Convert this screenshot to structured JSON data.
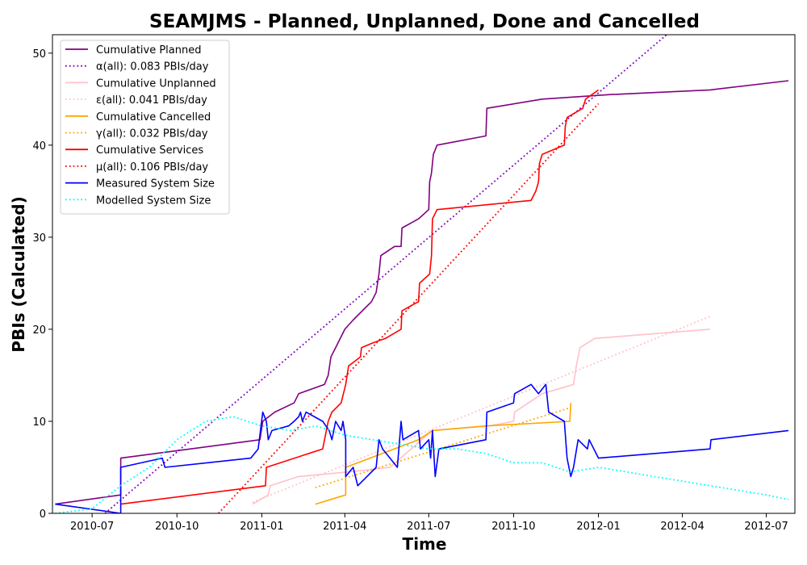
{
  "chart_data": {
    "type": "line",
    "title": "SEAMJMS - Planned, Unplanned, Done  and Cancelled",
    "xlabel": "Time",
    "ylabel": "PBIs (Calculated)",
    "xlim": [
      "2010-05-19",
      "2012-08-01"
    ],
    "ylim": [
      0,
      52
    ],
    "x_ticks": [
      "2010-07",
      "2010-10",
      "2011-01",
      "2011-04",
      "2011-07",
      "2011-10",
      "2012-01",
      "2012-04",
      "2012-07"
    ],
    "y_ticks": [
      0,
      10,
      20,
      30,
      40,
      50
    ],
    "grid": false,
    "legend_position": "top-left",
    "series": [
      {
        "name": "Cumulative Planned",
        "color": "#800080",
        "style": "solid",
        "points": [
          [
            "2010-05-22",
            1
          ],
          [
            "2010-08-01",
            2
          ],
          [
            "2010-08-01",
            6
          ],
          [
            "2010-12-30",
            8
          ],
          [
            "2011-01-02",
            10
          ],
          [
            "2011-01-15",
            11
          ],
          [
            "2011-02-05",
            12
          ],
          [
            "2011-02-10",
            13
          ],
          [
            "2011-03-10",
            14
          ],
          [
            "2011-03-14",
            15
          ],
          [
            "2011-03-17",
            17
          ],
          [
            "2011-03-22",
            18
          ],
          [
            "2011-04-01",
            20
          ],
          [
            "2011-04-10",
            21
          ],
          [
            "2011-04-20",
            22
          ],
          [
            "2011-04-30",
            23
          ],
          [
            "2011-05-05",
            24
          ],
          [
            "2011-05-08",
            26
          ],
          [
            "2011-05-10",
            28
          ],
          [
            "2011-05-25",
            29
          ],
          [
            "2011-06-01",
            29
          ],
          [
            "2011-06-02",
            31
          ],
          [
            "2011-06-20",
            32
          ],
          [
            "2011-07-01",
            33
          ],
          [
            "2011-07-02",
            36
          ],
          [
            "2011-07-04",
            37
          ],
          [
            "2011-07-06",
            39
          ],
          [
            "2011-07-10",
            40
          ],
          [
            "2011-09-01",
            41
          ],
          [
            "2011-09-02",
            44
          ],
          [
            "2011-11-01",
            45
          ],
          [
            "2012-01-15",
            45.5
          ],
          [
            "2012-05-01",
            46
          ],
          [
            "2012-07-25",
            47
          ]
        ]
      },
      {
        "name": "α(all): 0.083 PBIs/day",
        "color": "#8000bf",
        "style": "dotted",
        "points": [
          [
            "2010-07-15",
            0
          ],
          [
            "2012-03-15",
            52
          ]
        ]
      },
      {
        "name": "Cumulative Unplanned",
        "color": "#ffc0cb",
        "style": "solid",
        "points": [
          [
            "2010-12-22",
            1
          ],
          [
            "2011-01-08",
            2
          ],
          [
            "2011-01-10",
            3
          ],
          [
            "2011-02-10",
            4
          ],
          [
            "2011-04-05",
            4.5
          ],
          [
            "2011-05-20",
            5
          ],
          [
            "2011-07-05",
            9
          ],
          [
            "2011-09-05",
            9.5
          ],
          [
            "2011-10-01",
            10
          ],
          [
            "2011-10-02",
            11
          ],
          [
            "2011-11-01",
            13
          ],
          [
            "2011-12-05",
            14
          ],
          [
            "2011-12-08",
            16
          ],
          [
            "2011-12-12",
            18
          ],
          [
            "2011-12-28",
            19
          ],
          [
            "2012-05-01",
            20
          ]
        ]
      },
      {
        "name": "ε(all): 0.041 PBIs/day",
        "color": "#ffc0cb",
        "style": "dotted",
        "points": [
          [
            "2010-12-22",
            1.2
          ],
          [
            "2012-05-01",
            21.4
          ]
        ]
      },
      {
        "name": "Cumulative Cancelled",
        "color": "#ffa500",
        "style": "solid",
        "points": [
          [
            "2011-02-28",
            1
          ],
          [
            "2011-04-02",
            2
          ],
          [
            "2011-04-02",
            5
          ],
          [
            "2011-06-20",
            8
          ],
          [
            "2011-07-05",
            9
          ],
          [
            "2011-09-01",
            9.5
          ],
          [
            "2011-12-01",
            10
          ],
          [
            "2011-12-02",
            12
          ]
        ]
      },
      {
        "name": "γ(all): 0.032 PBIs/day",
        "color": "#ffa500",
        "style": "dotted",
        "points": [
          [
            "2011-02-28",
            2.8
          ],
          [
            "2011-12-02",
            11.5
          ]
        ]
      },
      {
        "name": "Cumulative Services",
        "color": "#ff0000",
        "style": "solid",
        "points": [
          [
            "2010-08-01",
            1
          ],
          [
            "2011-01-05",
            3
          ],
          [
            "2011-01-06",
            5
          ],
          [
            "2011-03-08",
            7
          ],
          [
            "2011-03-14",
            10
          ],
          [
            "2011-03-18",
            11
          ],
          [
            "2011-03-28",
            12
          ],
          [
            "2011-04-02",
            14
          ],
          [
            "2011-04-05",
            16
          ],
          [
            "2011-04-18",
            17
          ],
          [
            "2011-04-19",
            18
          ],
          [
            "2011-05-01",
            18.5
          ],
          [
            "2011-05-15",
            19
          ],
          [
            "2011-06-01",
            20
          ],
          [
            "2011-06-02",
            22
          ],
          [
            "2011-06-20",
            23
          ],
          [
            "2011-06-21",
            25
          ],
          [
            "2011-07-02",
            26
          ],
          [
            "2011-07-04",
            28
          ],
          [
            "2011-07-05",
            32
          ],
          [
            "2011-07-10",
            33
          ],
          [
            "2011-10-20",
            34
          ],
          [
            "2011-10-25",
            35
          ],
          [
            "2011-10-28",
            36
          ],
          [
            "2011-10-29",
            38
          ],
          [
            "2011-11-01",
            39
          ],
          [
            "2011-11-25",
            40
          ],
          [
            "2011-11-26",
            42
          ],
          [
            "2011-11-28",
            43
          ],
          [
            "2011-12-15",
            44
          ],
          [
            "2011-12-18",
            45
          ],
          [
            "2012-01-01",
            46
          ]
        ]
      },
      {
        "name": "μ(all): 0.106 PBIs/day",
        "color": "#ff0000",
        "style": "dotted",
        "points": [
          [
            "2010-11-15",
            0
          ],
          [
            "2012-01-01",
            44.5
          ]
        ]
      },
      {
        "name": "Measured System Size",
        "color": "#0000ff",
        "style": "solid",
        "points": [
          [
            "2010-05-22",
            1
          ],
          [
            "2010-08-01",
            0
          ],
          [
            "2010-08-01",
            5
          ],
          [
            "2010-09-15",
            6
          ],
          [
            "2010-09-18",
            5
          ],
          [
            "2010-12-20",
            6
          ],
          [
            "2010-12-28",
            7
          ],
          [
            "2011-01-02",
            11
          ],
          [
            "2011-01-06",
            10
          ],
          [
            "2011-01-08",
            8
          ],
          [
            "2011-01-12",
            9
          ],
          [
            "2011-01-30",
            9.5
          ],
          [
            "2011-02-05",
            10
          ],
          [
            "2011-02-10",
            10.5
          ],
          [
            "2011-02-12",
            11
          ],
          [
            "2011-02-14",
            10
          ],
          [
            "2011-02-18",
            11
          ],
          [
            "2011-03-08",
            10
          ],
          [
            "2011-03-15",
            9
          ],
          [
            "2011-03-18",
            8
          ],
          [
            "2011-03-22",
            10
          ],
          [
            "2011-03-28",
            9
          ],
          [
            "2011-03-30",
            10
          ],
          [
            "2011-04-02",
            8
          ],
          [
            "2011-04-02",
            4
          ],
          [
            "2011-04-10",
            5
          ],
          [
            "2011-04-15",
            3
          ],
          [
            "2011-04-25",
            4
          ],
          [
            "2011-05-05",
            5
          ],
          [
            "2011-05-08",
            8
          ],
          [
            "2011-05-12",
            7
          ],
          [
            "2011-05-28",
            5
          ],
          [
            "2011-06-01",
            10
          ],
          [
            "2011-06-03",
            8
          ],
          [
            "2011-06-20",
            9
          ],
          [
            "2011-06-22",
            7
          ],
          [
            "2011-07-01",
            8
          ],
          [
            "2011-07-03",
            6
          ],
          [
            "2011-07-05",
            9
          ],
          [
            "2011-07-08",
            4
          ],
          [
            "2011-07-12",
            7
          ],
          [
            "2011-09-01",
            8
          ],
          [
            "2011-09-02",
            11
          ],
          [
            "2011-10-01",
            12
          ],
          [
            "2011-10-02",
            13
          ],
          [
            "2011-10-20",
            14
          ],
          [
            "2011-10-28",
            13
          ],
          [
            "2011-11-05",
            14
          ],
          [
            "2011-11-08",
            11
          ],
          [
            "2011-11-25",
            10
          ],
          [
            "2011-11-28",
            6
          ],
          [
            "2011-12-02",
            4
          ],
          [
            "2011-12-05",
            5
          ],
          [
            "2011-12-10",
            8
          ],
          [
            "2011-12-20",
            7
          ],
          [
            "2011-12-22",
            8
          ],
          [
            "2012-01-01",
            6
          ],
          [
            "2012-05-01",
            7
          ],
          [
            "2012-05-02",
            8
          ],
          [
            "2012-07-25",
            9
          ]
        ]
      },
      {
        "name": "Modelled System Size",
        "color": "#00ffff",
        "style": "dotted",
        "points": [
          [
            "2010-05-22",
            0
          ],
          [
            "2010-07-01",
            0.5
          ],
          [
            "2010-08-01",
            3
          ],
          [
            "2010-09-01",
            5
          ],
          [
            "2010-10-01",
            8
          ],
          [
            "2010-11-01",
            10
          ],
          [
            "2010-12-01",
            10.5
          ],
          [
            "2011-01-01",
            9.5
          ],
          [
            "2011-02-01",
            9
          ],
          [
            "2011-03-01",
            9.5
          ],
          [
            "2011-04-01",
            8.5
          ],
          [
            "2011-05-01",
            8
          ],
          [
            "2011-06-01",
            7.5
          ],
          [
            "2011-07-01",
            7
          ],
          [
            "2011-08-01",
            7
          ],
          [
            "2011-09-01",
            6.5
          ],
          [
            "2011-10-01",
            5.5
          ],
          [
            "2011-11-01",
            5.5
          ],
          [
            "2011-12-01",
            4.5
          ],
          [
            "2012-01-01",
            5
          ],
          [
            "2012-02-01",
            4.5
          ],
          [
            "2012-03-01",
            4
          ],
          [
            "2012-04-01",
            3.5
          ],
          [
            "2012-05-01",
            3
          ],
          [
            "2012-06-01",
            2.5
          ],
          [
            "2012-07-01",
            2
          ],
          [
            "2012-07-25",
            1.5
          ]
        ]
      }
    ]
  }
}
